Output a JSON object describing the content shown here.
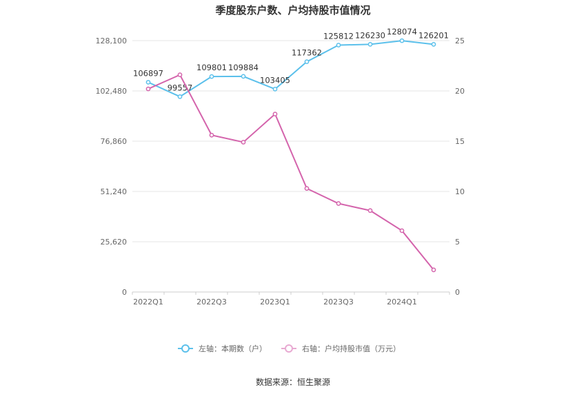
{
  "chart_data": {
    "type": "line",
    "title": "季度股东户数、户均持股市值情况",
    "source": "数据来源：恒生聚源",
    "categories": [
      "2022Q1",
      "2022Q2",
      "2022Q3",
      "2022Q4",
      "2023Q1",
      "2023Q2",
      "2023Q3",
      "2023Q4",
      "2024Q1",
      "2024Q2"
    ],
    "x_tick_labels": [
      "2022Q1",
      "2022Q3",
      "2023Q1",
      "2023Q3",
      "2024Q1"
    ],
    "left_axis": {
      "ticks": [
        "0",
        "25,620",
        "51,240",
        "76,860",
        "102,480",
        "128,100"
      ],
      "range": [
        0,
        128100
      ]
    },
    "right_axis": {
      "ticks": [
        "0",
        "5",
        "10",
        "15",
        "20",
        "25"
      ],
      "range": [
        0,
        25
      ]
    },
    "grid": true,
    "legend_position": "bottom",
    "series": [
      {
        "name": "左轴：本期数（户）",
        "axis": "left",
        "color": "#5bc0eb",
        "values": [
          106897,
          99557,
          109801,
          109884,
          103405,
          117362,
          125812,
          126230,
          128074,
          126201
        ],
        "labels": [
          "106897",
          "99557",
          "109801",
          "109884",
          "103405",
          "117362",
          "125812",
          "126230",
          "128074",
          "126201"
        ]
      },
      {
        "name": "右轴：户均持股市值（万元）",
        "axis": "right",
        "color": "#d464ac",
        "values": [
          20.2,
          21.6,
          15.6,
          14.9,
          17.7,
          10.3,
          8.8,
          8.1,
          6.1,
          2.2
        ]
      }
    ]
  }
}
